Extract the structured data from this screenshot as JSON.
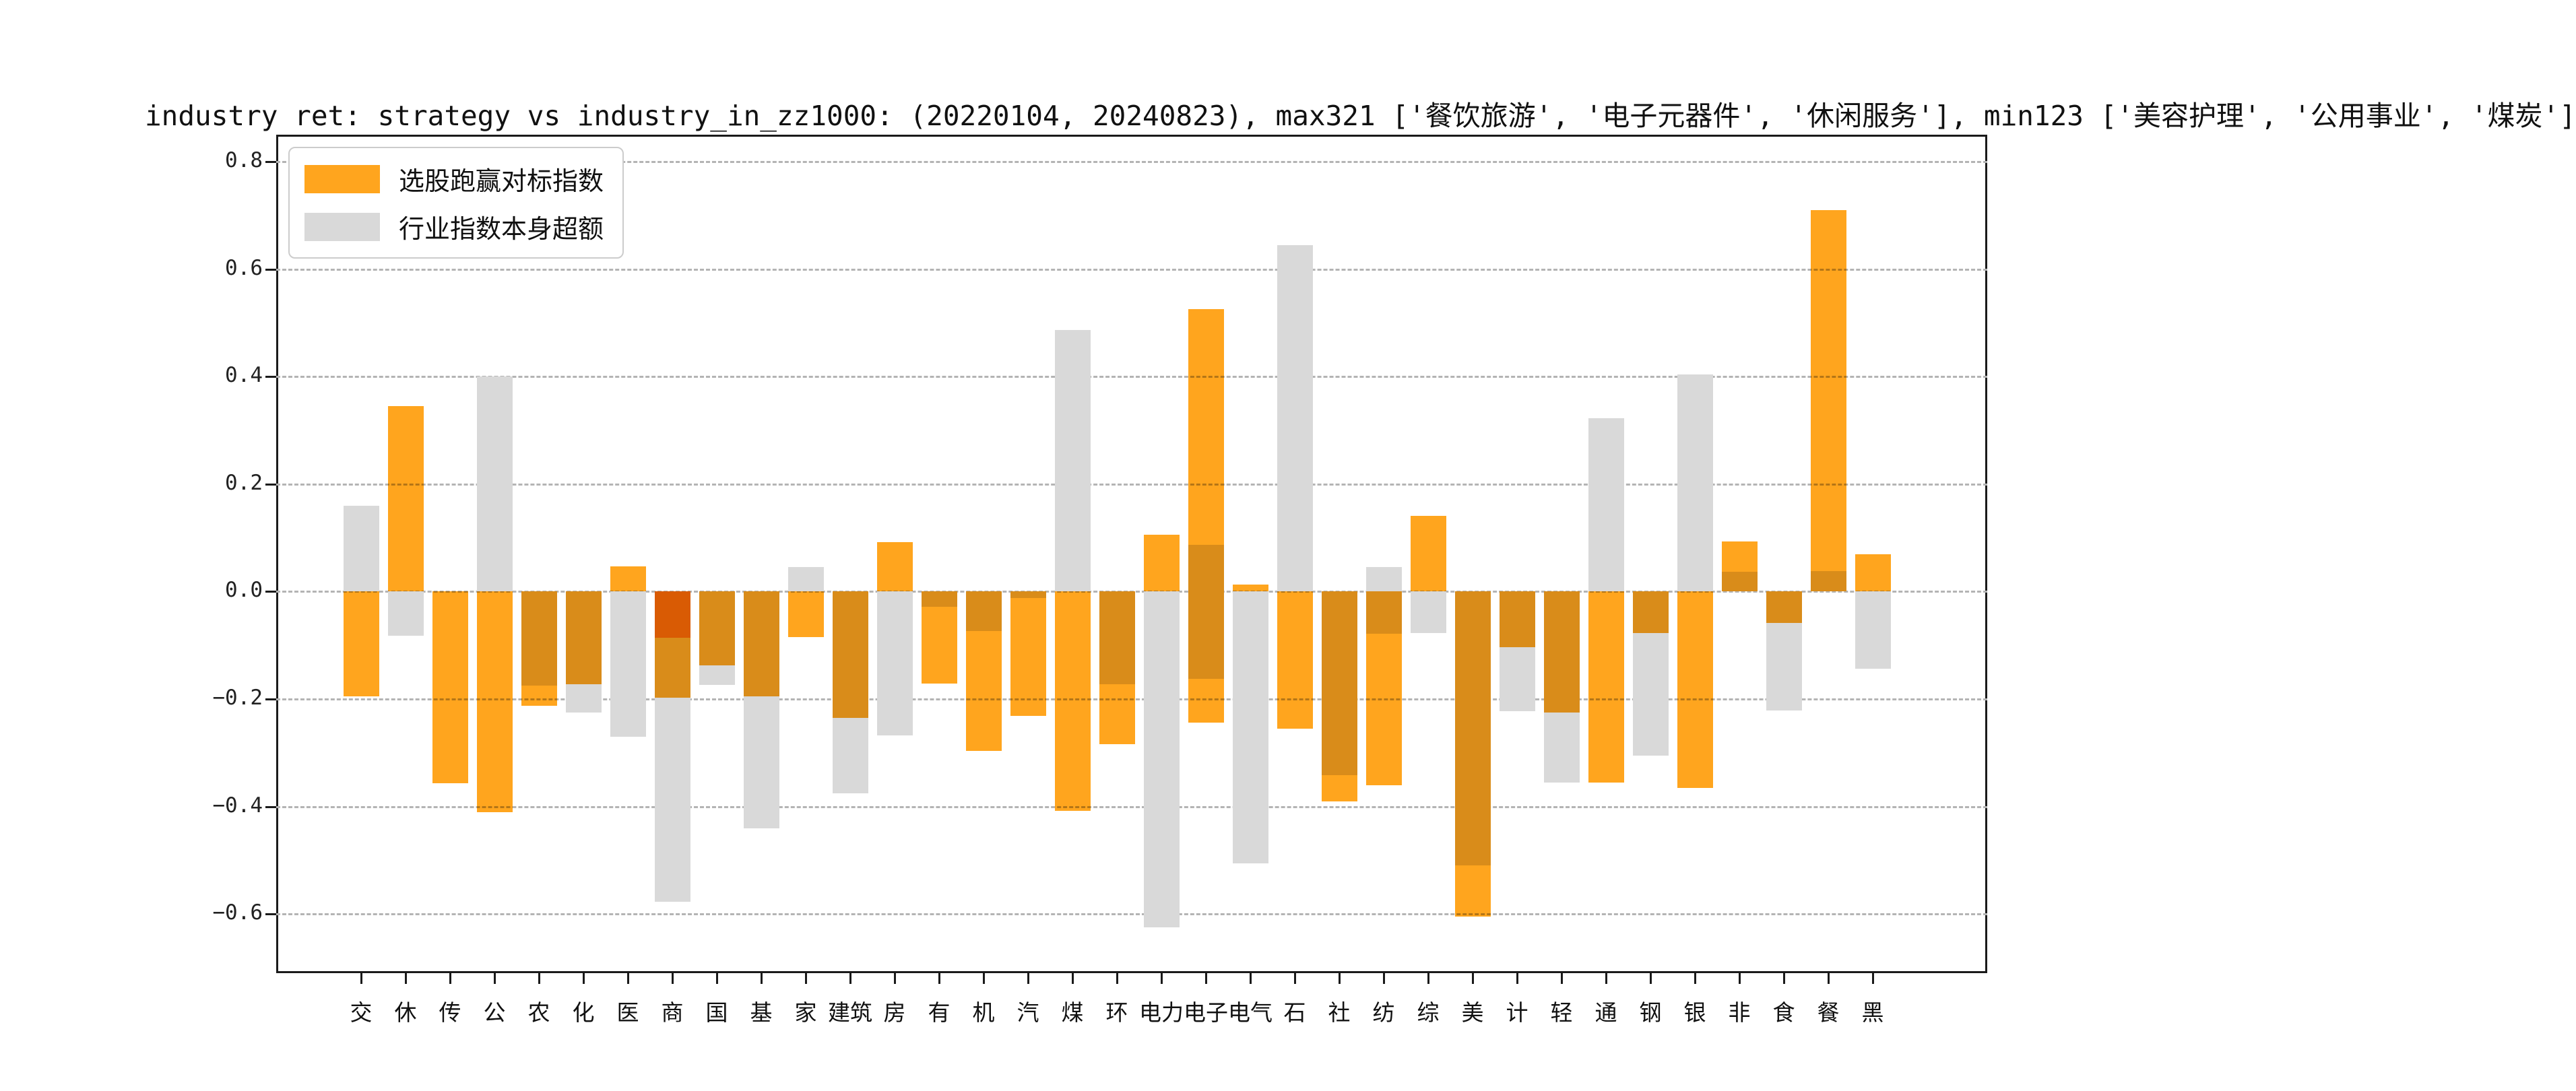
{
  "chart_data": {
    "type": "bar",
    "title": "industry ret: strategy vs industry_in_zz1000: (20220104, 20240823), max321 ['餐饮旅游', '电子元器件', '休闲服务'], min123 ['美容护理', '公用事业', '煤炭']",
    "categories": [
      "交",
      "休",
      "传",
      "公",
      "农",
      "化",
      "医",
      "商",
      "国",
      "基",
      "家",
      "建筑",
      "房",
      "有",
      "机",
      "汽",
      "煤",
      "环",
      "电力",
      "电子",
      "电气",
      "石",
      "社",
      "纺",
      "综",
      "美",
      "计",
      "轻",
      "通",
      "钢",
      "银",
      "非",
      "食",
      "餐",
      "黑"
    ],
    "series": [
      {
        "name": "行业指数本身超额",
        "color": "#d9d9d9",
        "bars": [
          [
            0.16
          ],
          [
            -0.082
          ],
          [],
          [
            0.4
          ],
          [
            -0.175
          ],
          [
            -0.225
          ],
          [
            -0.27
          ],
          [
            -0.577
          ],
          [
            -0.174
          ],
          [
            -0.44
          ],
          [
            0.045
          ],
          [
            -0.375
          ],
          [
            -0.268
          ],
          [
            -0.028
          ],
          [
            -0.074
          ],
          [
            -0.012
          ],
          [
            0.487
          ],
          [
            -0.173
          ],
          [
            -0.625
          ],
          [
            0.087,
            -0.162
          ],
          [
            -0.506
          ],
          [
            0.645
          ],
          [
            -0.342
          ],
          [
            0.045,
            -0.079
          ],
          [
            -0.077
          ],
          [
            -0.51
          ],
          [
            -0.223
          ],
          [
            -0.356
          ],
          [
            0.323
          ],
          [
            -0.305
          ],
          [
            0.404
          ],
          [
            0.037
          ],
          [
            -0.221
          ],
          [
            0.038
          ],
          [
            -0.144
          ]
        ]
      },
      {
        "name": "选股跑赢对标指数",
        "color": "#ffa51e",
        "bars": [
          [
            -0.195
          ],
          [
            0.345
          ],
          [
            -0.357
          ],
          [
            -0.41
          ],
          [
            -0.212
          ],
          [
            -0.172
          ],
          [
            0.047
          ],
          [
            -0.086,
            -0.197
          ],
          [
            -0.137
          ],
          [
            -0.195
          ],
          [
            -0.085
          ],
          [
            -0.235
          ],
          [
            0.092
          ],
          [
            -0.171
          ],
          [
            -0.297
          ],
          [
            -0.231
          ],
          [
            -0.408
          ],
          [
            -0.284
          ],
          [
            0.106
          ],
          [
            0.525,
            -0.244
          ],
          [
            0.013
          ],
          [
            -0.255
          ],
          [
            -0.391
          ],
          [
            -0.361
          ],
          [
            0.141
          ],
          [
            -0.605
          ],
          [
            -0.103
          ],
          [
            -0.225
          ],
          [
            -0.355
          ],
          [
            -0.077
          ],
          [
            -0.366
          ],
          [
            0.093
          ],
          [
            -0.058
          ],
          [
            0.71
          ],
          [
            0.07
          ]
        ]
      }
    ],
    "legend": [
      "选股跑赢对标指数",
      "行业指数本身超额"
    ],
    "legend_colors": [
      "#ffa51e",
      "#d9d9d9"
    ],
    "legend_position": "upper left",
    "xlabel": "",
    "ylabel": "",
    "ylim": [
      -0.71,
      0.85
    ],
    "yticks": [
      0.8,
      0.6,
      0.4,
      0.2,
      0.0,
      -0.2,
      -0.4,
      -0.6
    ],
    "grid": "dashed-horizontal"
  }
}
